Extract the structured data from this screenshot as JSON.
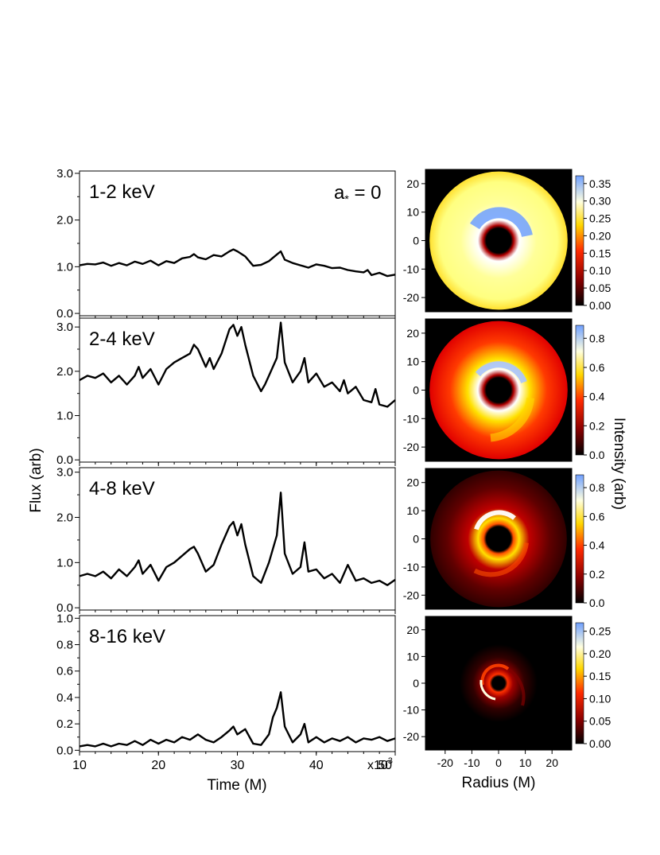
{
  "figure": {
    "y_axis_label": "Flux (arb)",
    "x_axis_label": "Time (M)",
    "x_axis_multiplier": "x10",
    "x_axis_multiplier_exp": "3",
    "spin_label": "a",
    "spin_sub": "*",
    "spin_value": " = 0",
    "radius_label": "Radius (M)",
    "intensity_label": "Intensity (arb)"
  },
  "chart_data": [
    {
      "type": "line",
      "panel_label": "1-2 keV",
      "xlim": [
        10,
        50
      ],
      "ylim": [
        -0.05,
        3.05
      ],
      "yticks": [
        0.0,
        1.0,
        2.0,
        3.0
      ],
      "ytick_labels": [
        "0.0",
        "1.0",
        "2.0",
        "3.0"
      ],
      "x": [
        10,
        11,
        12,
        13,
        14,
        15,
        16,
        17,
        18,
        19,
        20,
        21,
        22,
        23,
        24,
        24.5,
        25,
        26,
        27,
        28,
        29,
        29.5,
        30,
        31,
        32,
        33,
        34,
        35,
        35.5,
        36,
        37,
        38,
        39,
        40,
        41,
        42,
        43,
        44,
        45,
        46,
        46.5,
        47,
        48,
        49,
        50
      ],
      "y": [
        1.03,
        1.06,
        1.05,
        1.09,
        1.02,
        1.08,
        1.03,
        1.11,
        1.06,
        1.13,
        1.03,
        1.12,
        1.08,
        1.18,
        1.21,
        1.27,
        1.2,
        1.16,
        1.25,
        1.22,
        1.33,
        1.37,
        1.33,
        1.22,
        1.02,
        1.04,
        1.12,
        1.26,
        1.33,
        1.15,
        1.08,
        1.03,
        0.98,
        1.05,
        1.02,
        0.97,
        0.98,
        0.93,
        0.9,
        0.88,
        0.93,
        0.82,
        0.87,
        0.8,
        0.83
      ]
    },
    {
      "type": "line",
      "panel_label": "2-4 keV",
      "xlim": [
        10,
        50
      ],
      "ylim": [
        -0.05,
        3.2
      ],
      "yticks": [
        0.0,
        1.0,
        2.0,
        3.0
      ],
      "ytick_labels": [
        "0.0",
        "1.0",
        "2.0",
        "3.0"
      ],
      "x": [
        10,
        11,
        12,
        13,
        14,
        15,
        16,
        17,
        17.5,
        18,
        19,
        20,
        21,
        22,
        23,
        24,
        24.5,
        25,
        26,
        26.5,
        27,
        28,
        29,
        29.5,
        30,
        30.5,
        31,
        32,
        33,
        33.5,
        34,
        35,
        35.5,
        36,
        37,
        38,
        38.5,
        39,
        40,
        41,
        42,
        43,
        43.5,
        44,
        45,
        46,
        47,
        47.5,
        48,
        49,
        50
      ],
      "y": [
        1.8,
        1.9,
        1.85,
        1.95,
        1.75,
        1.9,
        1.7,
        1.9,
        2.1,
        1.85,
        2.05,
        1.7,
        2.05,
        2.2,
        2.3,
        2.4,
        2.6,
        2.5,
        2.1,
        2.3,
        2.05,
        2.4,
        2.95,
        3.05,
        2.8,
        3.0,
        2.6,
        1.9,
        1.55,
        1.7,
        1.9,
        2.3,
        3.1,
        2.2,
        1.75,
        2.0,
        2.3,
        1.75,
        1.95,
        1.65,
        1.75,
        1.55,
        1.8,
        1.5,
        1.65,
        1.35,
        1.3,
        1.6,
        1.25,
        1.2,
        1.35
      ]
    },
    {
      "type": "line",
      "panel_label": "4-8 keV",
      "xlim": [
        10,
        50
      ],
      "ylim": [
        -0.05,
        3.1
      ],
      "yticks": [
        0.0,
        1.0,
        2.0,
        3.0
      ],
      "ytick_labels": [
        "0.0",
        "1.0",
        "2.0",
        "3.0"
      ],
      "x": [
        10,
        11,
        12,
        13,
        14,
        15,
        16,
        17,
        17.5,
        18,
        19,
        20,
        21,
        22,
        23,
        24,
        24.5,
        25,
        26,
        27,
        28,
        29,
        29.5,
        30,
        30.5,
        31,
        32,
        33,
        34,
        35,
        35.5,
        36,
        37,
        38,
        38.5,
        39,
        40,
        41,
        42,
        43,
        44,
        45,
        46,
        47,
        48,
        49,
        50
      ],
      "y": [
        0.7,
        0.75,
        0.7,
        0.8,
        0.65,
        0.85,
        0.7,
        0.9,
        1.05,
        0.75,
        0.95,
        0.6,
        0.9,
        1.0,
        1.15,
        1.3,
        1.35,
        1.2,
        0.8,
        0.95,
        1.4,
        1.8,
        1.9,
        1.6,
        1.85,
        1.4,
        0.7,
        0.55,
        1.0,
        1.6,
        2.55,
        1.2,
        0.75,
        0.9,
        1.45,
        0.8,
        0.85,
        0.65,
        0.75,
        0.55,
        0.95,
        0.6,
        0.65,
        0.55,
        0.6,
        0.5,
        0.62
      ]
    },
    {
      "type": "line",
      "panel_label": "8-16 keV",
      "xlim": [
        10,
        50
      ],
      "ylim": [
        -0.01,
        1.02
      ],
      "yticks": [
        0.0,
        0.2,
        0.4,
        0.6,
        0.8,
        1.0
      ],
      "ytick_labels": [
        "0.0",
        "0.2",
        "0.4",
        "0.6",
        "0.8",
        "1.0"
      ],
      "x": [
        10,
        11,
        12,
        13,
        14,
        15,
        16,
        17,
        18,
        19,
        20,
        21,
        22,
        23,
        24,
        25,
        26,
        27,
        28,
        29,
        29.5,
        30,
        31,
        32,
        33,
        34,
        34.5,
        35,
        35.5,
        36,
        37,
        38,
        38.5,
        39,
        40,
        41,
        42,
        43,
        44,
        45,
        46,
        47,
        48,
        49,
        50
      ],
      "y": [
        0.03,
        0.04,
        0.03,
        0.05,
        0.03,
        0.05,
        0.04,
        0.07,
        0.04,
        0.08,
        0.05,
        0.08,
        0.06,
        0.1,
        0.08,
        0.12,
        0.08,
        0.06,
        0.1,
        0.15,
        0.18,
        0.12,
        0.16,
        0.05,
        0.04,
        0.12,
        0.25,
        0.32,
        0.44,
        0.18,
        0.06,
        0.12,
        0.2,
        0.06,
        0.1,
        0.06,
        0.09,
        0.07,
        0.1,
        0.06,
        0.09,
        0.08,
        0.1,
        0.07,
        0.09
      ]
    },
    {
      "type": "heatmap",
      "axis_ticks": [
        "-20",
        "-10",
        "0",
        "10",
        "20"
      ],
      "radius_ticks": [
        "-20",
        "-10",
        "0",
        "10",
        "20"
      ],
      "colorbar_ticks": [
        "0.00",
        "0.05",
        "0.10",
        "0.15",
        "0.20",
        "0.25",
        "0.30",
        "0.35"
      ],
      "colorscale": [
        "#000000",
        "#8b0000",
        "#ff2a00",
        "#ffd700",
        "#ffffe0",
        "#6fa0ff"
      ]
    },
    {
      "type": "heatmap",
      "axis_ticks": [
        "-20",
        "-10",
        "0",
        "10",
        "20"
      ],
      "radius_ticks": [
        "-20",
        "-10",
        "0",
        "10",
        "20"
      ],
      "colorbar_ticks": [
        "0.0",
        "0.2",
        "0.4",
        "0.6",
        "0.8"
      ],
      "colorscale": [
        "#000000",
        "#8b0000",
        "#ff2a00",
        "#ffd700",
        "#ffffe0",
        "#6fa0ff"
      ]
    },
    {
      "type": "heatmap",
      "axis_ticks": [
        "-20",
        "-10",
        "0",
        "10",
        "20"
      ],
      "radius_ticks": [
        "-20",
        "-10",
        "0",
        "10",
        "20"
      ],
      "colorbar_ticks": [
        "0.0",
        "0.2",
        "0.4",
        "0.6",
        "0.8"
      ],
      "colorscale": [
        "#000000",
        "#8b0000",
        "#ff2a00",
        "#ffd700",
        "#ffffe0",
        "#6fa0ff"
      ]
    },
    {
      "type": "heatmap",
      "axis_ticks": [
        "-20",
        "-10",
        "0",
        "10",
        "20"
      ],
      "radius_ticks": [
        "-20",
        "-10",
        "0",
        "10",
        "20"
      ],
      "colorbar_ticks": [
        "0.00",
        "0.05",
        "0.10",
        "0.15",
        "0.20",
        "0.25"
      ],
      "colorscale": [
        "#000000",
        "#8b0000",
        "#ff2a00",
        "#ffd700",
        "#ffffe0",
        "#6fa0ff"
      ]
    }
  ],
  "time_axis": {
    "ticks": [
      10,
      20,
      30,
      40,
      50
    ],
    "tick_labels": [
      "10",
      "20",
      "30",
      "40",
      "50"
    ]
  }
}
